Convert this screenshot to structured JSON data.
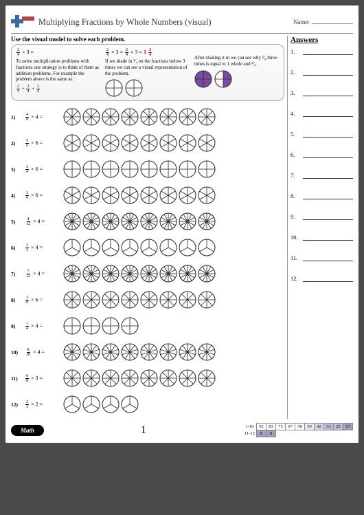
{
  "header": {
    "title": "Multiplying Fractions by Whole Numbers (visual)",
    "name_label": "Name:"
  },
  "instruction": "Use the visual model to solve each problem.",
  "example": {
    "col1_eq_label": "× 3 =",
    "col1_frac": {
      "n": "2",
      "d": "4"
    },
    "col1_text": "To solve multiplication problems with fractions one strategy is to think of them as addition problems. For example the problem above is the same as:",
    "col1_addition_plus": " + ",
    "col2_eq_prefix": "× 3 =",
    "col2_eq_mid": "× 3 = ",
    "col2_result_whole": "1 ",
    "col2_result_frac": {
      "n": "2",
      "d": "4"
    },
    "col2_text": "If we shade in ²⁄₄ on the fractions below 3 times we can see a visual representation of the problem.",
    "col3_text": "After shading it in we can see why ²⁄₄ three times is equal to 1 whole and ²⁄₄.",
    "unshaded_circles": {
      "segments": 4,
      "shaded": 0,
      "count": 2
    },
    "shaded_circles": [
      {
        "segments": 4,
        "shaded": 4,
        "fill": "#7a4aa0"
      },
      {
        "segments": 4,
        "shaded": 2,
        "fill": "#7a4aa0"
      }
    ]
  },
  "problems": [
    {
      "num": "1)",
      "frac": {
        "n": "4",
        "d": "8"
      },
      "whole": "4",
      "circles": 8,
      "segments": 8
    },
    {
      "num": "2)",
      "frac": {
        "n": "5",
        "d": "6"
      },
      "whole": "6",
      "circles": 8,
      "segments": 6
    },
    {
      "num": "3)",
      "frac": {
        "n": "3",
        "d": "4"
      },
      "whole": "6",
      "circles": 8,
      "segments": 4
    },
    {
      "num": "4)",
      "frac": {
        "n": "3",
        "d": "6"
      },
      "whole": "6",
      "circles": 8,
      "segments": 6
    },
    {
      "num": "5)",
      "frac": {
        "n": "4",
        "d": "12"
      },
      "whole": "4",
      "circles": 8,
      "segments": 12
    },
    {
      "num": "6)",
      "frac": {
        "n": "2",
        "d": "3"
      },
      "whole": "4",
      "circles": 8,
      "segments": 3
    },
    {
      "num": "7)",
      "frac": {
        "n": "7",
        "d": "12"
      },
      "whole": "4",
      "circles": 8,
      "segments": 12
    },
    {
      "num": "8)",
      "frac": {
        "n": "3",
        "d": "8"
      },
      "whole": "6",
      "circles": 8,
      "segments": 8
    },
    {
      "num": "9)",
      "frac": {
        "n": "1",
        "d": "4"
      },
      "whole": "4",
      "circles": 4,
      "segments": 4
    },
    {
      "num": "10)",
      "frac": {
        "n": "8",
        "d": "10"
      },
      "whole": "4",
      "circles": 8,
      "segments": 10
    },
    {
      "num": "11)",
      "frac": {
        "n": "6",
        "d": "8"
      },
      "whole": "3",
      "circles": 8,
      "segments": 8
    },
    {
      "num": "12)",
      "frac": {
        "n": "2",
        "d": "3"
      },
      "whole": "2",
      "circles": 4,
      "segments": 3
    }
  ],
  "answers": {
    "title": "Answers",
    "rows": [
      "1.",
      "2.",
      "3.",
      "4.",
      "5.",
      "6.",
      "7.",
      "8.",
      "9.",
      "10.",
      "11.",
      "12."
    ]
  },
  "footer": {
    "math_label": "Math",
    "page_number": "1",
    "score": {
      "row1_label": "1-10",
      "row1": [
        "92",
        "83",
        "75",
        "67",
        "58",
        "50",
        "42",
        "33",
        "25",
        "17"
      ],
      "row2_label": "11-12",
      "row2": [
        "8",
        "0"
      ]
    }
  },
  "style": {
    "circle_size": 26,
    "ex_circle_size": 26,
    "circle_stroke": "#333",
    "shaded_fill": "#7a4aa0"
  }
}
